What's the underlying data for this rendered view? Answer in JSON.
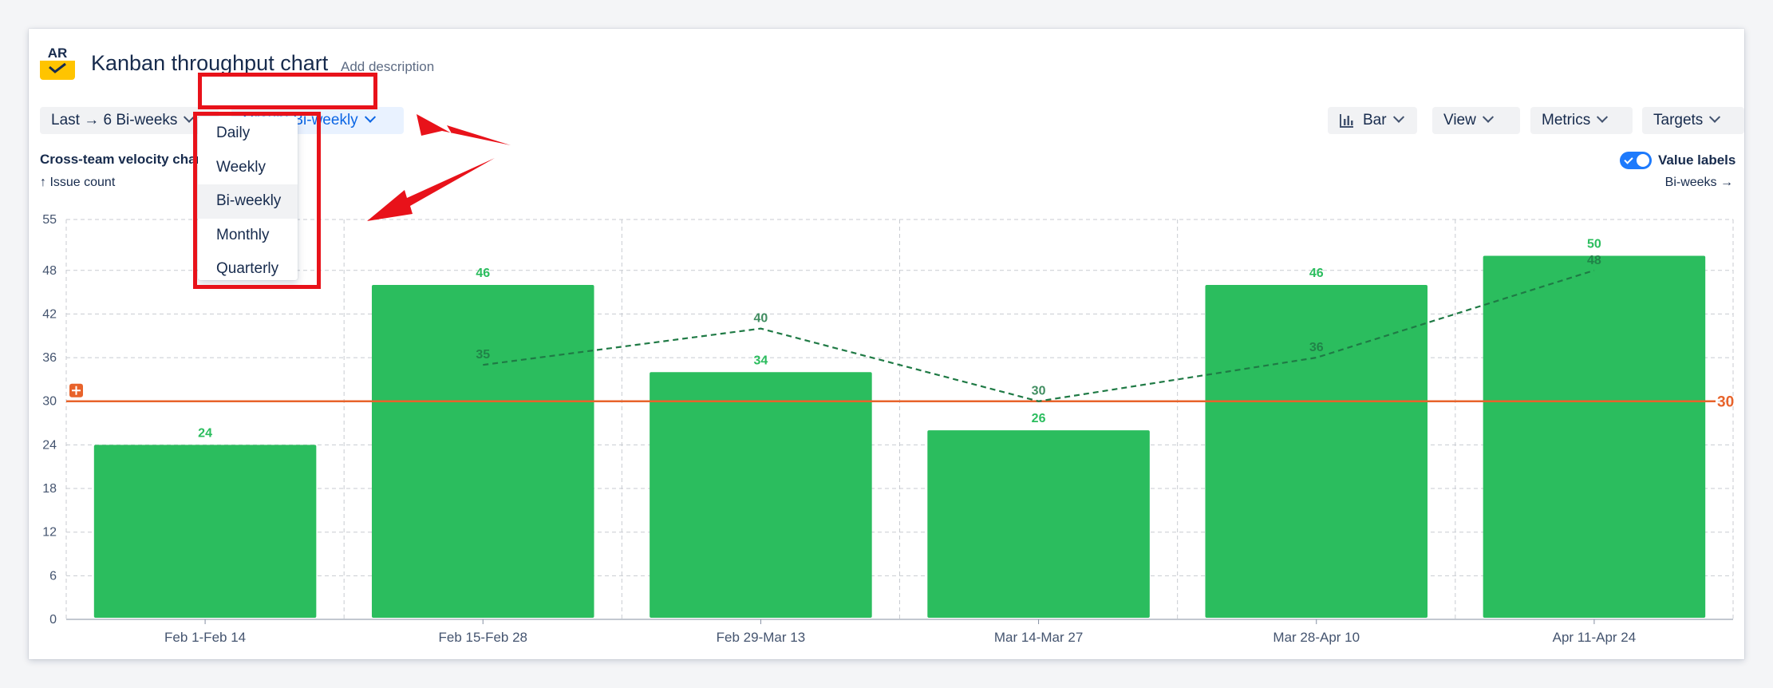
{
  "header": {
    "title": "Kanban throughput chart",
    "add_description": "Add description",
    "logo_text": "AR"
  },
  "toolbar": {
    "range_label": "Last → 6 Bi-weeks",
    "group_label": "Group: Bi-weekly",
    "bar_label": "Bar",
    "view_label": "View",
    "metrics_label": "Metrics",
    "targets_label": "Targets"
  },
  "group_menu": {
    "items": [
      {
        "label": "Daily"
      },
      {
        "label": "Weekly"
      },
      {
        "label": "Bi-weekly"
      },
      {
        "label": "Monthly"
      },
      {
        "label": "Quarterly"
      }
    ],
    "selected": "Bi-weekly"
  },
  "chart_header": {
    "title": "Cross-team velocity chart",
    "y_axis_label": "↑ Issue count",
    "x_axis_label": "Bi-weeks →",
    "value_labels_toggle": "Value labels",
    "value_labels_on": true
  },
  "colors": {
    "bar": "#2bbd5e",
    "bar_label": "#2bbd5e",
    "trend": "#1f7a45",
    "target": "#e8632b",
    "annotation": "#e8121a",
    "accent": "#0c66e4"
  },
  "chart_data": {
    "type": "bar",
    "categories": [
      "Feb 1-Feb 14",
      "Feb 15-Feb 28",
      "Feb 29-Mar 13",
      "Mar 14-Mar 27",
      "Mar 28-Apr 10",
      "Apr 11-Apr 24"
    ],
    "series": [
      {
        "values": [
          24,
          46,
          34,
          26,
          46,
          50
        ]
      }
    ],
    "trend_line": {
      "values": [
        null,
        35,
        40,
        30,
        36,
        48
      ]
    },
    "target_line": {
      "value": 30,
      "label": "30"
    },
    "ylim": [
      0,
      55
    ],
    "yticks": [
      0,
      6,
      12,
      18,
      24,
      30,
      36,
      42,
      48,
      55
    ],
    "grid": true,
    "data_labels": true
  }
}
